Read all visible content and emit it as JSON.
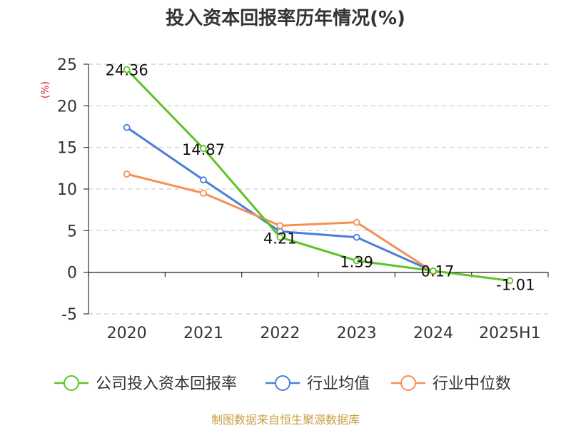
{
  "chart_data": {
    "type": "line",
    "title": "投入资本回报率历年情况(%)",
    "ylabel": "(%)",
    "xlabel": "",
    "categories": [
      "2020",
      "2021",
      "2022",
      "2023",
      "2024",
      "2025H1"
    ],
    "ylim": [
      -5,
      25
    ],
    "yticks": [
      25,
      20,
      15,
      10,
      5,
      0,
      -5
    ],
    "grid": "horizontal-dashed",
    "legend_position": "bottom",
    "series": [
      {
        "name": "公司投入资本回报率",
        "color": "#5cc425",
        "values": [
          24.36,
          14.87,
          4.21,
          1.39,
          0.17,
          -1.01
        ],
        "labels": [
          "24.36",
          "14.87",
          "4.21",
          "1.39",
          "0.17",
          "-1.01"
        ]
      },
      {
        "name": "行业均值",
        "color": "#4a7fd9",
        "values": [
          17.4,
          11.1,
          4.9,
          4.2,
          0.1,
          null
        ]
      },
      {
        "name": "行业中位数",
        "color": "#f78f53",
        "values": [
          11.8,
          9.5,
          5.6,
          6.0,
          0.05,
          null
        ]
      }
    ]
  },
  "footer": {
    "source": "制图数据来自恒生聚源数据库",
    "source_color": "#c8a043"
  },
  "colors": {
    "ylabel": "#e02020",
    "grid": "#cccccc",
    "axis": "#333333"
  }
}
